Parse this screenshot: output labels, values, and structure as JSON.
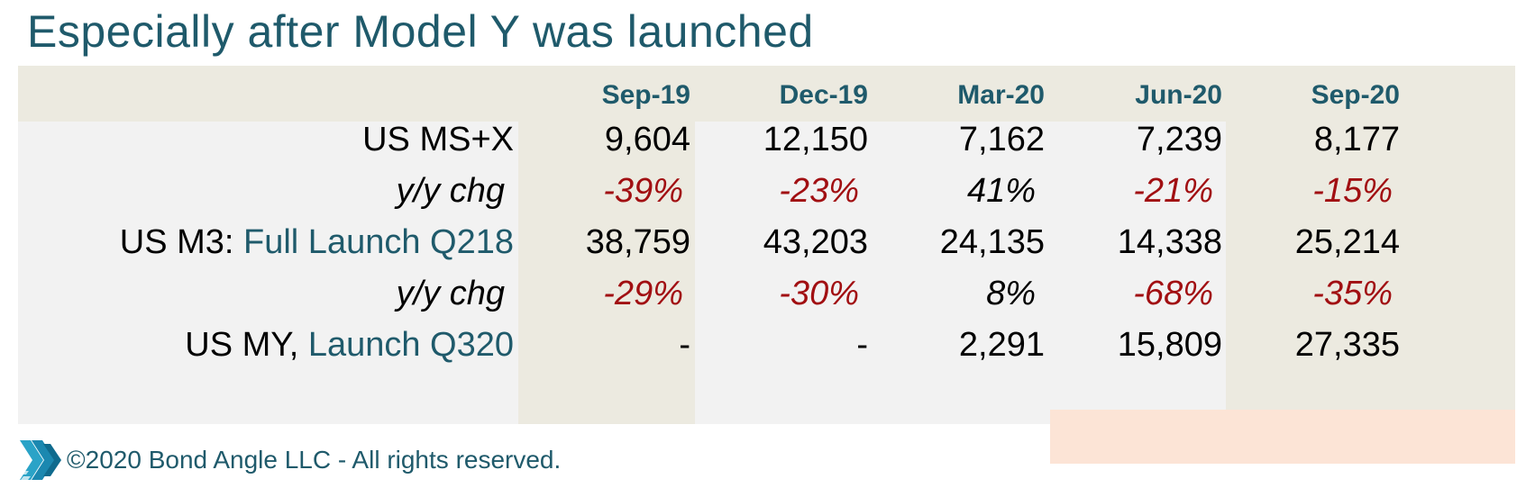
{
  "title": "Especially after Model Y was launched",
  "columns": [
    "Sep-19",
    "Dec-19",
    "Mar-20",
    "Jun-20",
    "Sep-20"
  ],
  "rows": [
    {
      "label": "US MS+X",
      "label_accent": "",
      "kind": "value",
      "cells": [
        "9,604",
        "12,150",
        "7,162",
        "7,239",
        "8,177"
      ]
    },
    {
      "label": "y/y chg",
      "label_accent": "",
      "kind": "pct",
      "cells": [
        "-39%",
        "-23%",
        "41%",
        "-21%",
        "-15%"
      ]
    },
    {
      "label": "US M3: ",
      "label_accent": "Full Launch Q218",
      "kind": "value",
      "cells": [
        "38,759",
        "43,203",
        "24,135",
        "14,338",
        "25,214"
      ]
    },
    {
      "label": "y/y chg",
      "label_accent": "",
      "kind": "pct",
      "cells": [
        "-29%",
        "-30%",
        "8%",
        "-68%",
        "-35%"
      ]
    },
    {
      "label": "US MY, ",
      "label_accent": "Launch Q320",
      "kind": "value",
      "cells": [
        "-",
        "-",
        "2,291",
        "15,809",
        "27,335"
      ]
    }
  ],
  "colors": {
    "title": "#1f5a6b",
    "header_band": "#eceae0",
    "body_bg": "#f2f2f2",
    "negative": "#a10f12",
    "highlight": "#fce4d6"
  },
  "footer": {
    "logo_icon": "chevron-arrows-icon",
    "text": "©2020 Bond Angle LLC - All rights reserved."
  }
}
